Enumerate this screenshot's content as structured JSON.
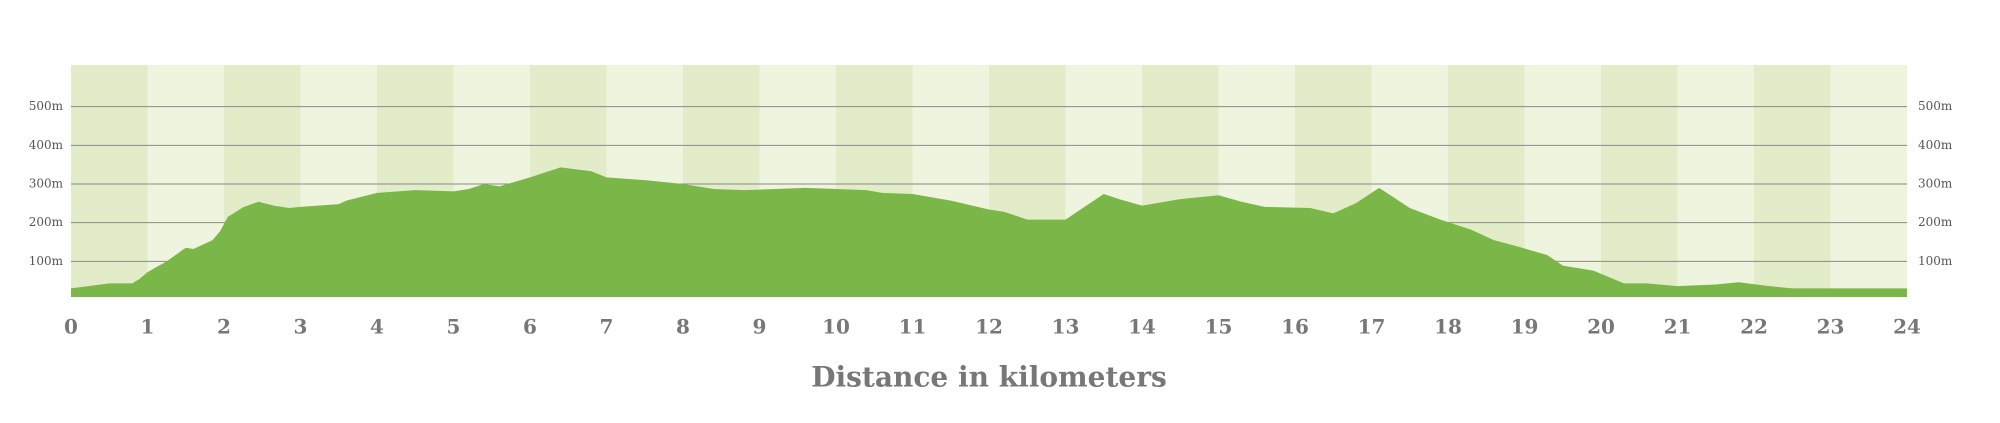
{
  "chart_data": {
    "type": "area",
    "xlabel": "Distance in kilometers",
    "x": [
      0,
      0.5,
      0.8,
      0.9,
      1.0,
      1.25,
      1.5,
      1.6,
      1.85,
      1.95,
      2.05,
      2.25,
      2.45,
      2.65,
      2.85,
      3.0,
      3.5,
      3.6,
      4.0,
      4.5,
      5.0,
      5.2,
      5.4,
      5.6,
      6.0,
      6.4,
      6.8,
      7.0,
      7.5,
      8.0,
      8.4,
      8.8,
      9.2,
      9.6,
      10.0,
      10.4,
      10.6,
      11.0,
      11.5,
      12.0,
      12.2,
      12.5,
      13.0,
      13.5,
      13.7,
      14.0,
      14.5,
      15.0,
      15.3,
      15.6,
      16.2,
      16.5,
      16.8,
      17.1,
      17.5,
      17.9,
      18.3,
      18.6,
      18.9,
      19.3,
      19.5,
      19.9,
      20.3,
      20.6,
      21.0,
      21.5,
      21.8,
      22.2,
      22.5,
      23.0,
      24.0
    ],
    "values": [
      30,
      43,
      43,
      55,
      72,
      100,
      135,
      132,
      155,
      178,
      215,
      240,
      254,
      244,
      238,
      241,
      248,
      257,
      277,
      284,
      281,
      287,
      300,
      294,
      317,
      343,
      333,
      317,
      310,
      300,
      287,
      284,
      287,
      290,
      287,
      284,
      277,
      274,
      257,
      234,
      228,
      208,
      208,
      274,
      261,
      244,
      261,
      271,
      254,
      241,
      238,
      224,
      251,
      290,
      238,
      208,
      182,
      155,
      139,
      116,
      89,
      76,
      43,
      43,
      36,
      40,
      46,
      36,
      30,
      30,
      30
    ],
    "color": "#7ab648",
    "xlim": [
      0,
      24
    ],
    "xticks": [
      0,
      1,
      2,
      3,
      4,
      5,
      6,
      7,
      8,
      9,
      10,
      11,
      12,
      13,
      14,
      15,
      16,
      17,
      18,
      19,
      20,
      21,
      22,
      23,
      24
    ],
    "ylim": [
      0,
      600
    ],
    "yticks": [
      {
        "value": 100,
        "label": "100m"
      },
      {
        "value": 200,
        "label": "200m"
      },
      {
        "value": 300,
        "label": "300m"
      },
      {
        "value": 400,
        "label": "400m"
      },
      {
        "value": 500,
        "label": "500m"
      }
    ],
    "grid": true
  }
}
